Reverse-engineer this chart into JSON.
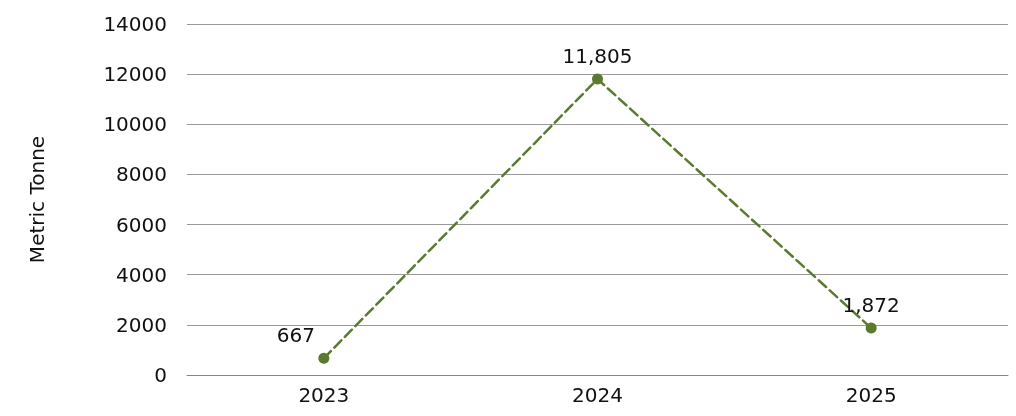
{
  "chart_data": {
    "type": "line",
    "ylabel": "Metric Tonne",
    "categories": [
      "2023",
      "2024",
      "2025"
    ],
    "series": [
      {
        "color": "#5b7a2f",
        "values": [
          667,
          11805,
          1872
        ],
        "value_labels": [
          "667",
          "11,805",
          "1,872"
        ]
      }
    ],
    "ylim": [
      0,
      14000
    ],
    "yticks": [
      0,
      2000,
      4000,
      6000,
      8000,
      10000,
      12000,
      14000
    ],
    "grid": "y",
    "marker": "circle",
    "line_style": "dashed"
  }
}
